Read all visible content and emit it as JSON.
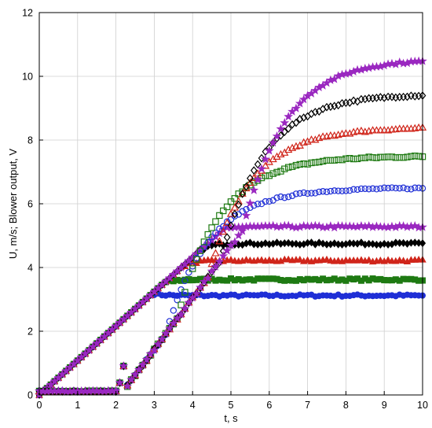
{
  "chart_data": {
    "type": "scatter",
    "xlabel": "t, s",
    "ylabel": "U, m/s; Blower output, V",
    "xlim": [
      0,
      10
    ],
    "ylim": [
      0,
      12
    ],
    "xticks": [
      0,
      1,
      2,
      3,
      4,
      5,
      6,
      7,
      8,
      9,
      10
    ],
    "yticks": [
      0,
      2,
      4,
      6,
      8,
      10,
      12
    ],
    "xtick_labels": [
      "0",
      "1",
      "2",
      "3",
      "4",
      "5",
      "6",
      "7",
      "8",
      "9",
      "10"
    ],
    "ytick_labels": [
      "0",
      "2",
      "4",
      "6",
      "8",
      "10",
      "12"
    ],
    "grid": true,
    "legend": "none",
    "series": [
      {
        "marker": "circle-filled",
        "color": "#1f2fd6",
        "ramp_end": 2.95,
        "final": 3.12
      },
      {
        "marker": "square-filled",
        "color": "#1e7a12",
        "ramp_end": 3.25,
        "final": 3.62
      },
      {
        "marker": "triangle-filled",
        "color": "#d0251a",
        "ramp_end": 3.65,
        "final": 4.22
      },
      {
        "marker": "diamond-filled",
        "color": "#000000",
        "ramp_end": 4.1,
        "final": 4.75
      },
      {
        "marker": "star-filled",
        "color": "#9a28c0",
        "ramp_end": 4.85,
        "final": 5.28
      },
      {
        "marker": "circle-open",
        "color": "#1f2fd6",
        "wait_until": 2.15,
        "final": 6.5,
        "plateau_from": 3.3
      },
      {
        "marker": "square-open",
        "color": "#1e7a12",
        "wait_until": 2.15,
        "final": 7.5,
        "plateau_from": 3.6
      },
      {
        "marker": "triangle-open",
        "color": "#d0251a",
        "wait_until": 2.15,
        "final": 8.4,
        "plateau_from": 4.4
      },
      {
        "marker": "diamond-open",
        "color": "#000000",
        "wait_until": 2.15,
        "final": 9.45,
        "plateau_from": 4.75
      },
      {
        "marker": "star-filled",
        "color": "#9a28c0",
        "wait_until": 2.15,
        "final": 10.55,
        "plateau_from": 5.3
      }
    ]
  }
}
